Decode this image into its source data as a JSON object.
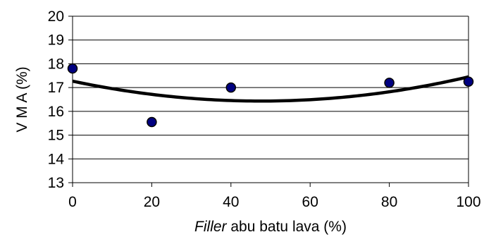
{
  "chart_data": {
    "type": "scatter",
    "xlabel_italic": "Filler",
    "xlabel_rest": " abu batu lava (%)",
    "ylabel": "V M A (%)",
    "xlim": [
      0,
      100
    ],
    "ylim": [
      13,
      20
    ],
    "x_ticks": [
      "0",
      "20",
      "40",
      "60",
      "80",
      "100"
    ],
    "y_ticks": [
      "13",
      "14",
      "15",
      "16",
      "17",
      "18",
      "19",
      "20"
    ],
    "grid": true,
    "series": [
      {
        "points": [
          {
            "x": 0,
            "y": 17.8
          },
          {
            "x": 20,
            "y": 15.55
          },
          {
            "x": 40,
            "y": 17.0
          },
          {
            "x": 80,
            "y": 17.2
          },
          {
            "x": 100,
            "y": 17.25
          }
        ],
        "marker_color": "#000080"
      }
    ],
    "trendline": {
      "kind": "polynomial-2",
      "coefficients": [
        17.27,
        -0.0352,
        0.00037
      ],
      "color": "#000000"
    }
  }
}
